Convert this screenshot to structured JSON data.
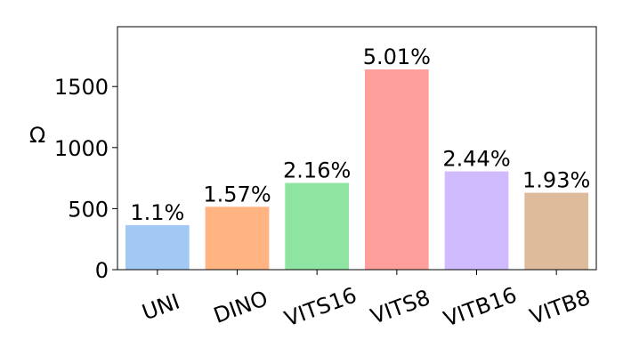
{
  "chart_data": {
    "type": "bar",
    "ylabel": "Ω",
    "categories": [
      "UNI",
      "DINO",
      "VITS16",
      "VITS8",
      "VITB16",
      "VITB8"
    ],
    "values": [
      365,
      515,
      710,
      1640,
      805,
      630
    ],
    "annotations": [
      "1.1%",
      "1.57%",
      "2.16%",
      "5.01%",
      "2.44%",
      "1.93%"
    ],
    "colors": [
      "#a1c9f4",
      "#ffb482",
      "#8de5a1",
      "#ff9f9b",
      "#d0bbff",
      "#debb9b"
    ],
    "ylim": [
      0,
      1990
    ],
    "yticks": [
      0,
      500,
      1000,
      1500
    ],
    "grid": false
  }
}
